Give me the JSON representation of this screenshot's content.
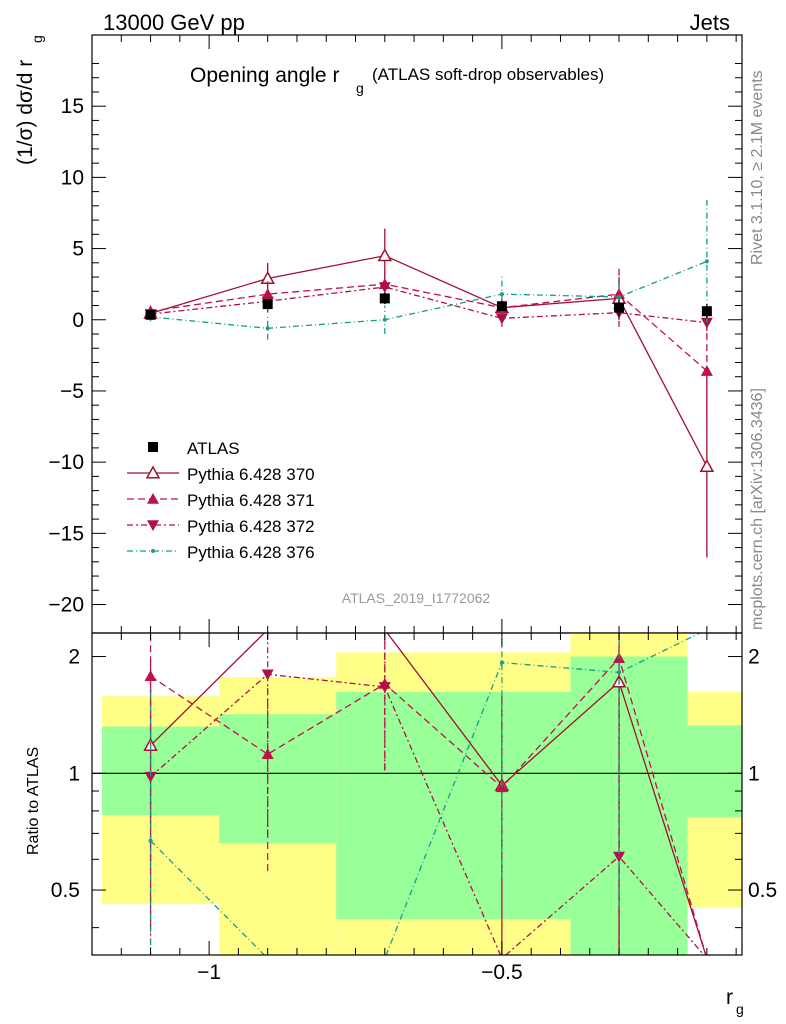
{
  "header": {
    "left": "13000 GeV pp",
    "right": "Jets"
  },
  "side_labels": {
    "rivet": "Rivet 3.1.10, ≥ 2.1M events",
    "mcplots": "mcplots.cern.ch [arXiv:1306.3436]"
  },
  "chart_data": {
    "type": "line",
    "title_main": "Opening angle r",
    "title_sub": "g",
    "title_extra": "(ATLAS soft-drop observables)",
    "analysis_label": "ATLAS_2019_I1772062",
    "ylabel": "(1/σ) dσ/d r",
    "ylabel_sub": "g",
    "xlabel": "r",
    "xlabel_sub": "g",
    "ratio_ylabel": "Ratio to ATLAS",
    "xlim": [
      -1.2,
      -0.09
    ],
    "ylim": [
      -22,
      20
    ],
    "ratio_ylim": [
      0.34,
      2.3
    ],
    "xticks": [
      -1,
      -0.5
    ],
    "xtick_labels": [
      "−1",
      "−0.5"
    ],
    "yticks": [
      -20,
      -15,
      -10,
      -5,
      0,
      5,
      10,
      15
    ],
    "ytick_labels": [
      "−20",
      "−15",
      "−10",
      "−5",
      "0",
      "5",
      "10",
      "15"
    ],
    "ratio_ytick_labels": [
      "0.5",
      "1",
      "2"
    ],
    "x": [
      -1.1,
      -0.9,
      -0.7,
      -0.5,
      -0.3,
      -0.15
    ],
    "bin_edges": [
      -1.2,
      -1.0,
      -0.8,
      -0.6,
      -0.4,
      -0.2,
      -0.1
    ],
    "data": {
      "name": "ATLAS",
      "values": [
        0.35,
        1.1,
        1.5,
        0.95,
        0.85,
        0.6
      ],
      "errors": [
        0.2,
        0.3,
        0.4,
        0.3,
        0.6,
        0.5
      ],
      "ratio_band_inner": [
        [
          0.78,
          1.32
        ],
        [
          0.66,
          1.42
        ],
        [
          0.42,
          1.62
        ],
        [
          0.42,
          1.62
        ],
        [
          0.3,
          2.0
        ],
        [
          0.77,
          1.33
        ]
      ],
      "ratio_band_outer": [
        [
          0.46,
          1.58
        ],
        [
          0.3,
          1.77
        ],
        [
          0.3,
          2.05
        ],
        [
          0.3,
          2.05
        ],
        [
          0.3,
          2.4
        ],
        [
          0.45,
          1.62
        ]
      ]
    },
    "series": [
      {
        "name": "Pythia 6.428 370",
        "color": "#a01030",
        "marker": "triangle-open",
        "dash": "",
        "values": [
          0.45,
          2.9,
          4.5,
          0.85,
          1.5,
          -10.3
        ],
        "errors": [
          0.3,
          1.1,
          1.9,
          0.6,
          1.5,
          6.4
        ],
        "ratio": [
          1.18,
          3.0,
          3.0,
          0.93,
          1.72,
          0.3
        ]
      },
      {
        "name": "Pythia 6.428 371",
        "color": "#c0104a",
        "marker": "triangle-up",
        "dash": "7,4",
        "values": [
          0.6,
          1.8,
          2.5,
          0.85,
          1.8,
          -3.6
        ],
        "errors": [
          0.4,
          0.9,
          1.0,
          0.6,
          1.8,
          4.0
        ],
        "ratio": [
          1.78,
          1.12,
          1.7,
          0.92,
          1.98,
          0.3
        ]
      },
      {
        "name": "Pythia 6.428 372",
        "color": "#b0104a",
        "marker": "triangle-down",
        "dash": "6,3,2,3",
        "values": [
          0.4,
          1.3,
          2.3,
          0.1,
          0.5,
          -0.2
        ],
        "errors": [
          0.3,
          0.8,
          0.9,
          0.6,
          1.0,
          0.6
        ],
        "ratio": [
          0.98,
          1.8,
          1.67,
          0.3,
          0.61,
          0.3
        ]
      },
      {
        "name": "Pythia 6.428 376",
        "color": "#159e8c",
        "marker": "dot",
        "dash": "6,3,1,3",
        "values": [
          0.2,
          -0.6,
          0.0,
          1.8,
          1.6,
          4.1
        ],
        "errors": [
          0.3,
          0.8,
          1.0,
          1.3,
          1.2,
          4.3
        ],
        "ratio": [
          0.67,
          0.3,
          0.3,
          1.93,
          1.82,
          4.0
        ]
      }
    ]
  }
}
